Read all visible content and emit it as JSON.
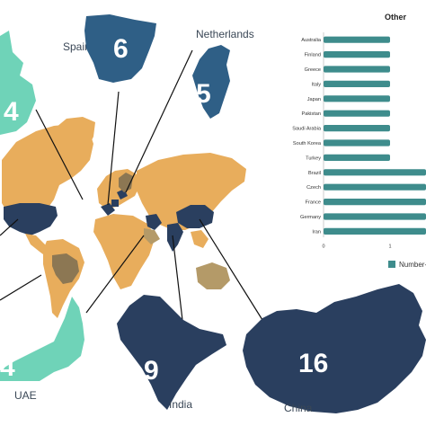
{
  "map": {
    "callouts": [
      {
        "id": "uk",
        "label": "",
        "count": "4",
        "color": "#6fd3b8"
      },
      {
        "id": "spain",
        "label": "Spain",
        "count": "6",
        "color": "#2f5f86"
      },
      {
        "id": "netherlands",
        "label": "Netherlands",
        "count": "5",
        "color": "#2f5f86"
      },
      {
        "id": "uae",
        "label": "UAE",
        "count": "4",
        "color": "#6fd3b8"
      },
      {
        "id": "india",
        "label": "India",
        "count": "9",
        "color": "#2a3f5f"
      },
      {
        "id": "china",
        "label": "China",
        "count": "16",
        "color": "#2a3f5f"
      }
    ],
    "colors": {
      "land": "#e8ad5c",
      "highlight_dark": "#2a3f5f",
      "highlight_mid": "#2f5f86",
      "highlight_teal": "#6fd3b8",
      "highlight_brown": "#8c7753",
      "highlight_tan": "#b49a68"
    }
  },
  "chart_data": {
    "type": "bar",
    "orientation": "horizontal",
    "title": "Other",
    "categories": [
      "Australia",
      "Finland",
      "Greece",
      "Italy",
      "Japan",
      "Pakistan",
      "Saudi Arabia",
      "South Korea",
      "Turkey",
      "Brazil",
      "Czech",
      "France",
      "Germany",
      "Iran"
    ],
    "series": [
      {
        "name": "Number",
        "values": [
          1,
          1,
          1,
          1,
          1,
          1,
          1,
          1,
          1,
          2,
          2,
          2,
          2,
          2
        ]
      }
    ],
    "xticks": [
      "0",
      "1"
    ],
    "xlim": [
      0,
      2
    ],
    "color": "#3e8c8c",
    "legend_position": "bottom",
    "legend_label": "Number-"
  }
}
